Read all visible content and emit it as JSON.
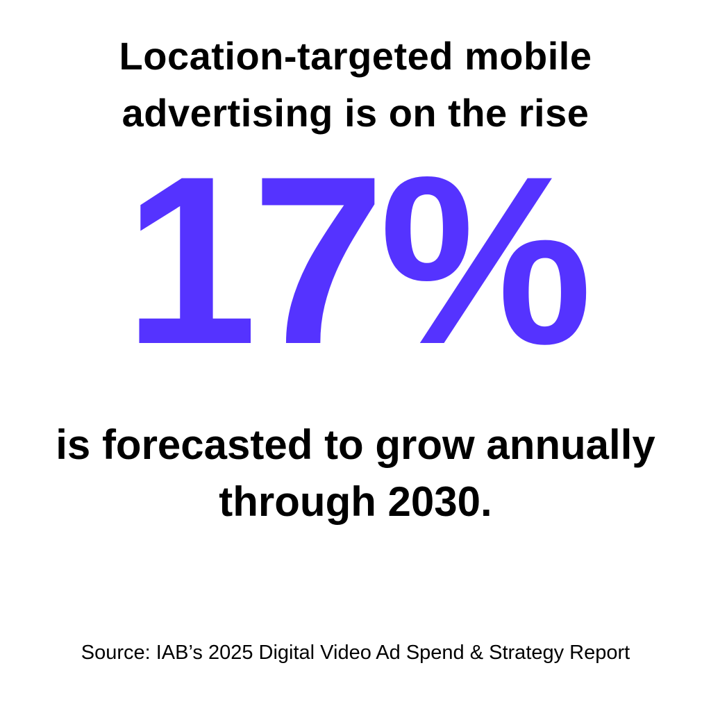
{
  "headline": {
    "line1": "Location-targeted mobile",
    "line2": "advertising is on the rise"
  },
  "stat": {
    "value": "17%",
    "color": "#5533FF"
  },
  "subtext": {
    "line1": "is forecasted to grow annually",
    "line2": "through 2030."
  },
  "source": "Source: IAB’s 2025 Digital Video Ad Spend & Strategy Report"
}
